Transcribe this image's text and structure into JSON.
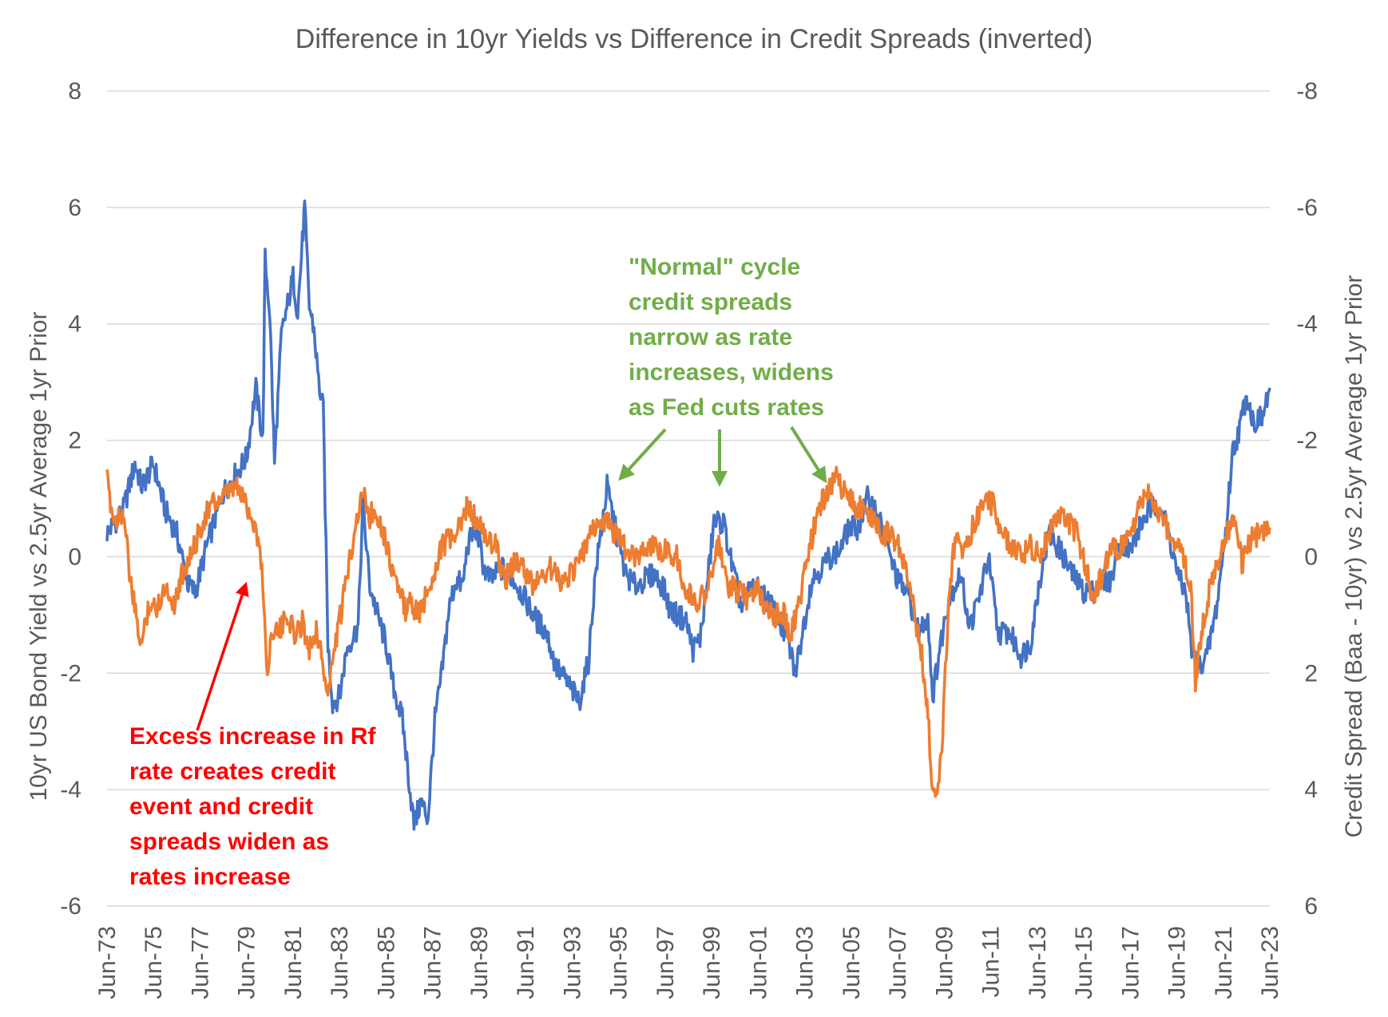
{
  "chart_data": {
    "type": "line",
    "title": "Difference in 10yr Yields vs Difference in Credit Spreads (inverted)",
    "ylabel": "10yr US Bond Yield vs 2.5yr Average 1yr Prior",
    "y2label": "Credit Spread (Baa - 10yr) vs 2.5yr Average 1yr Prior",
    "ylim": [
      -6,
      8
    ],
    "y2lim": [
      6,
      -8
    ],
    "y2_inverted": true,
    "yticks": [
      "8",
      "6",
      "4",
      "2",
      "0",
      "-2",
      "-4",
      "-6"
    ],
    "y2ticks": [
      "-8",
      "-6",
      "-4",
      "-2",
      "0",
      "2",
      "4",
      "6"
    ],
    "xticks": [
      "Jun-73",
      "Jun-75",
      "Jun-77",
      "Jun-79",
      "Jun-81",
      "Jun-83",
      "Jun-85",
      "Jun-87",
      "Jun-89",
      "Jun-91",
      "Jun-93",
      "Jun-95",
      "Jun-97",
      "Jun-99",
      "Jun-01",
      "Jun-03",
      "Jun-05",
      "Jun-07",
      "Jun-09",
      "Jun-11",
      "Jun-13",
      "Jun-15",
      "Jun-17",
      "Jun-19",
      "Jun-21",
      "Jun-23"
    ],
    "grid": true,
    "legend": "none",
    "series": [
      {
        "axis": "left",
        "color": "#4472c4",
        "points": [
          [
            1973.5,
            0.4
          ],
          [
            1974.2,
            0.8
          ],
          [
            1974.7,
            1.6
          ],
          [
            1975.0,
            1.2
          ],
          [
            1975.5,
            1.6
          ],
          [
            1976.0,
            0.8
          ],
          [
            1976.5,
            0.4
          ],
          [
            1977.0,
            -0.5
          ],
          [
            1977.3,
            -0.6
          ],
          [
            1977.8,
            0.2
          ],
          [
            1978.5,
            1.1
          ],
          [
            1979.0,
            1.4
          ],
          [
            1979.5,
            1.7
          ],
          [
            1979.9,
            2.9
          ],
          [
            1980.2,
            2.0
          ],
          [
            1980.3,
            5.1
          ],
          [
            1980.5,
            4.2
          ],
          [
            1980.7,
            1.6
          ],
          [
            1981.0,
            3.8
          ],
          [
            1981.5,
            4.8
          ],
          [
            1981.7,
            4.2
          ],
          [
            1981.9,
            5.4
          ],
          [
            1982.0,
            6.0
          ],
          [
            1982.2,
            4.3
          ],
          [
            1982.4,
            3.9
          ],
          [
            1982.6,
            3.0
          ],
          [
            1982.8,
            2.5
          ],
          [
            1983.0,
            -1.5
          ],
          [
            1983.2,
            -2.5
          ],
          [
            1983.5,
            -2.4
          ],
          [
            1983.8,
            -1.6
          ],
          [
            1984.3,
            -1.2
          ],
          [
            1984.5,
            0.9
          ],
          [
            1984.8,
            -0.5
          ],
          [
            1985.2,
            -1.1
          ],
          [
            1985.5,
            -1.5
          ],
          [
            1985.8,
            -2.2
          ],
          [
            1986.2,
            -2.8
          ],
          [
            1986.5,
            -3.9
          ],
          [
            1986.7,
            -4.6
          ],
          [
            1987.0,
            -4.2
          ],
          [
            1987.3,
            -4.5
          ],
          [
            1987.6,
            -2.8
          ],
          [
            1987.9,
            -2.0
          ],
          [
            1988.2,
            -0.9
          ],
          [
            1988.5,
            -0.4
          ],
          [
            1988.8,
            -0.5
          ],
          [
            1989.0,
            0.2
          ],
          [
            1989.4,
            0.5
          ],
          [
            1989.7,
            -0.2
          ],
          [
            1990.0,
            -0.4
          ],
          [
            1990.5,
            -0.2
          ],
          [
            1991.0,
            -0.4
          ],
          [
            1991.3,
            -0.6
          ],
          [
            1991.7,
            -0.9
          ],
          [
            1992.0,
            -1.1
          ],
          [
            1992.4,
            -1.3
          ],
          [
            1992.8,
            -1.9
          ],
          [
            1993.2,
            -2.1
          ],
          [
            1993.5,
            -2.3
          ],
          [
            1993.8,
            -2.5
          ],
          [
            1994.2,
            -1.8
          ],
          [
            1994.5,
            -0.3
          ],
          [
            1994.8,
            0.6
          ],
          [
            1995.0,
            1.2
          ],
          [
            1995.4,
            0.4
          ],
          [
            1995.8,
            -0.3
          ],
          [
            1996.2,
            -0.5
          ],
          [
            1996.6,
            -0.4
          ],
          [
            1997.0,
            -0.3
          ],
          [
            1997.4,
            -0.5
          ],
          [
            1997.7,
            -0.9
          ],
          [
            1998.0,
            -1.0
          ],
          [
            1998.4,
            -1.1
          ],
          [
            1998.7,
            -1.6
          ],
          [
            1999.0,
            -1.4
          ],
          [
            1999.3,
            -0.5
          ],
          [
            1999.6,
            0.6
          ],
          [
            2000.0,
            0.6
          ],
          [
            2000.4,
            -0.2
          ],
          [
            2000.8,
            -0.9
          ],
          [
            2001.2,
            -0.5
          ],
          [
            2001.6,
            -0.6
          ],
          [
            2002.0,
            -0.8
          ],
          [
            2002.4,
            -1.1
          ],
          [
            2002.8,
            -1.5
          ],
          [
            2003.1,
            -2.0
          ],
          [
            2003.4,
            -1.3
          ],
          [
            2003.8,
            -0.4
          ],
          [
            2004.2,
            -0.2
          ],
          [
            2004.6,
            0.0
          ],
          [
            2005.0,
            0.1
          ],
          [
            2005.4,
            0.5
          ],
          [
            2005.8,
            0.5
          ],
          [
            2006.2,
            1.0
          ],
          [
            2006.6,
            0.8
          ],
          [
            2007.0,
            0.2
          ],
          [
            2007.5,
            -0.4
          ],
          [
            2008.0,
            -0.7
          ],
          [
            2008.4,
            -1.3
          ],
          [
            2008.8,
            -1.0
          ],
          [
            2009.0,
            -2.4
          ],
          [
            2009.3,
            -1.6
          ],
          [
            2009.7,
            -0.7
          ],
          [
            2010.2,
            -0.3
          ],
          [
            2010.6,
            -1.2
          ],
          [
            2011.0,
            -0.7
          ],
          [
            2011.4,
            0.0
          ],
          [
            2011.8,
            -1.3
          ],
          [
            2012.3,
            -1.3
          ],
          [
            2012.8,
            -1.7
          ],
          [
            2013.2,
            -1.5
          ],
          [
            2013.6,
            -0.4
          ],
          [
            2014.0,
            0.4
          ],
          [
            2014.5,
            0.1
          ],
          [
            2015.0,
            -0.3
          ],
          [
            2015.5,
            -0.6
          ],
          [
            2015.9,
            -0.6
          ],
          [
            2016.3,
            -0.4
          ],
          [
            2016.7,
            -0.4
          ],
          [
            2017.0,
            0.3
          ],
          [
            2017.5,
            0.1
          ],
          [
            2017.9,
            0.5
          ],
          [
            2018.3,
            0.8
          ],
          [
            2018.8,
            0.9
          ],
          [
            2019.2,
            0.3
          ],
          [
            2019.6,
            -0.4
          ],
          [
            2019.9,
            -0.6
          ],
          [
            2020.1,
            -1.5
          ],
          [
            2020.4,
            -1.9
          ],
          [
            2020.8,
            -1.7
          ],
          [
            2021.2,
            -0.9
          ],
          [
            2021.6,
            0.4
          ],
          [
            2021.9,
            1.8
          ],
          [
            2022.2,
            2.2
          ],
          [
            2022.5,
            2.8
          ],
          [
            2022.8,
            2.3
          ],
          [
            2023.2,
            2.4
          ],
          [
            2023.5,
            2.9
          ]
        ]
      },
      {
        "axis": "right",
        "color": "#ed7d31",
        "points": [
          [
            1973.5,
            -1.3
          ],
          [
            1973.8,
            -0.6
          ],
          [
            1974.2,
            -0.8
          ],
          [
            1974.5,
            0.4
          ],
          [
            1974.8,
            1.2
          ],
          [
            1975.0,
            1.5
          ],
          [
            1975.3,
            0.8
          ],
          [
            1975.6,
            0.9
          ],
          [
            1976.0,
            0.5
          ],
          [
            1976.4,
            0.8
          ],
          [
            1976.8,
            0.2
          ],
          [
            1977.2,
            -0.1
          ],
          [
            1977.6,
            -0.6
          ],
          [
            1978.0,
            -0.9
          ],
          [
            1978.5,
            -1.0
          ],
          [
            1979.0,
            -1.2
          ],
          [
            1979.4,
            -1.0
          ],
          [
            1979.8,
            -0.6
          ],
          [
            1980.0,
            -0.3
          ],
          [
            1980.2,
            0.4
          ],
          [
            1980.4,
            2.1
          ],
          [
            1980.6,
            1.2
          ],
          [
            1980.9,
            1.3
          ],
          [
            1981.3,
            1.0
          ],
          [
            1981.6,
            1.4
          ],
          [
            1981.9,
            1.1
          ],
          [
            1982.2,
            1.6
          ],
          [
            1982.5,
            1.2
          ],
          [
            1982.8,
            1.9
          ],
          [
            1983.0,
            2.4
          ],
          [
            1983.3,
            1.5
          ],
          [
            1983.6,
            0.9
          ],
          [
            1983.9,
            0.1
          ],
          [
            1984.2,
            -0.6
          ],
          [
            1984.5,
            -1.1
          ],
          [
            1984.8,
            -0.7
          ],
          [
            1985.1,
            -0.8
          ],
          [
            1985.4,
            -0.4
          ],
          [
            1985.7,
            0.1
          ],
          [
            1986.0,
            0.5
          ],
          [
            1986.3,
            0.9
          ],
          [
            1986.6,
            0.8
          ],
          [
            1986.9,
            1.0
          ],
          [
            1987.3,
            0.6
          ],
          [
            1987.6,
            0.2
          ],
          [
            1987.9,
            -0.2
          ],
          [
            1988.3,
            -0.3
          ],
          [
            1988.7,
            -0.5
          ],
          [
            1989.0,
            -0.9
          ],
          [
            1989.4,
            -0.6
          ],
          [
            1989.8,
            -0.3
          ],
          [
            1990.2,
            -0.2
          ],
          [
            1990.6,
            0.4
          ],
          [
            1991.0,
            0.1
          ],
          [
            1991.4,
            0.2
          ],
          [
            1991.8,
            0.5
          ],
          [
            1992.2,
            0.3
          ],
          [
            1992.6,
            0.2
          ],
          [
            1993.0,
            0.4
          ],
          [
            1993.4,
            0.3
          ],
          [
            1993.8,
            0.1
          ],
          [
            1994.2,
            -0.3
          ],
          [
            1994.6,
            -0.6
          ],
          [
            1995.0,
            -0.6
          ],
          [
            1995.5,
            -0.3
          ],
          [
            1996.0,
            0.0
          ],
          [
            1996.5,
            -0.1
          ],
          [
            1997.0,
            -0.2
          ],
          [
            1997.5,
            -0.1
          ],
          [
            1998.0,
            0.0
          ],
          [
            1998.4,
            0.6
          ],
          [
            1998.8,
            0.8
          ],
          [
            1999.2,
            0.6
          ],
          [
            1999.5,
            0.3
          ],
          [
            1999.8,
            -0.2
          ],
          [
            2000.2,
            0.5
          ],
          [
            2000.6,
            0.6
          ],
          [
            2001.0,
            0.7
          ],
          [
            2001.4,
            0.5
          ],
          [
            2001.8,
            0.9
          ],
          [
            2002.2,
            1.0
          ],
          [
            2002.6,
            1.0
          ],
          [
            2002.9,
            1.3
          ],
          [
            2003.2,
            0.9
          ],
          [
            2003.5,
            0.3
          ],
          [
            2003.9,
            -0.5
          ],
          [
            2004.3,
            -1.0
          ],
          [
            2004.6,
            -1.2
          ],
          [
            2004.9,
            -1.4
          ],
          [
            2005.2,
            -1.1
          ],
          [
            2005.6,
            -0.9
          ],
          [
            2006.0,
            -0.8
          ],
          [
            2006.4,
            -0.7
          ],
          [
            2006.8,
            -0.4
          ],
          [
            2007.2,
            -0.4
          ],
          [
            2007.6,
            -0.1
          ],
          [
            2007.9,
            0.3
          ],
          [
            2008.2,
            0.9
          ],
          [
            2008.5,
            1.6
          ],
          [
            2008.8,
            2.6
          ],
          [
            2009.0,
            4.2
          ],
          [
            2009.2,
            4.1
          ],
          [
            2009.4,
            3.3
          ],
          [
            2009.7,
            0.6
          ],
          [
            2010.0,
            -0.4
          ],
          [
            2010.4,
            -0.1
          ],
          [
            2010.8,
            -0.6
          ],
          [
            2011.2,
            -1.0
          ],
          [
            2011.6,
            -0.9
          ],
          [
            2012.0,
            -0.4
          ],
          [
            2012.4,
            -0.2
          ],
          [
            2012.8,
            0.0
          ],
          [
            2013.2,
            -0.2
          ],
          [
            2013.6,
            0.0
          ],
          [
            2014.0,
            -0.4
          ],
          [
            2014.4,
            -0.8
          ],
          [
            2014.8,
            -0.6
          ],
          [
            2015.2,
            -0.4
          ],
          [
            2015.6,
            0.2
          ],
          [
            2015.9,
            0.7
          ],
          [
            2016.2,
            0.4
          ],
          [
            2016.6,
            -0.1
          ],
          [
            2017.0,
            -0.1
          ],
          [
            2017.4,
            -0.3
          ],
          [
            2017.8,
            -0.7
          ],
          [
            2018.2,
            -1.1
          ],
          [
            2018.6,
            -0.8
          ],
          [
            2019.0,
            -0.6
          ],
          [
            2019.4,
            -0.2
          ],
          [
            2019.8,
            0.0
          ],
          [
            2020.1,
            0.5
          ],
          [
            2020.3,
            2.1
          ],
          [
            2020.6,
            1.2
          ],
          [
            2020.9,
            0.6
          ],
          [
            2021.3,
            0.1
          ],
          [
            2021.7,
            -0.4
          ],
          [
            2022.0,
            -0.6
          ],
          [
            2022.3,
            0.1
          ],
          [
            2022.7,
            -0.3
          ],
          [
            2023.0,
            -0.4
          ],
          [
            2023.5,
            -0.5
          ]
        ]
      }
    ]
  },
  "annotations": {
    "green": [
      "\"Normal\" cycle",
      "credit spreads",
      "narrow as rate",
      "increases, widens",
      "as Fed cuts rates"
    ],
    "red": [
      "Excess increase in Rf",
      "rate creates credit",
      "event and credit",
      "spreads widen as",
      "rates increase"
    ]
  },
  "colors": {
    "annotation_green": "#70ad47",
    "annotation_red": "#ff0000",
    "grid": "#d9d9d9",
    "text": "#595959"
  }
}
